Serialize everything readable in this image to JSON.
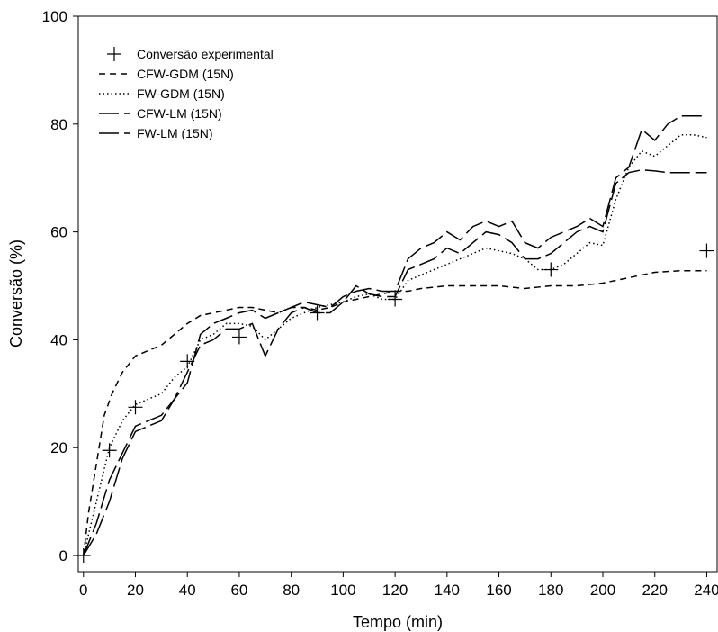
{
  "chart_data": {
    "type": "line",
    "title": "",
    "xlabel": "Tempo (min)",
    "ylabel": "Conversão (%)",
    "xlim": [
      -2,
      244
    ],
    "ylim": [
      -3,
      100
    ],
    "xticks": [
      0,
      20,
      40,
      60,
      80,
      100,
      120,
      140,
      160,
      180,
      200,
      220,
      240
    ],
    "yticks": [
      0,
      20,
      40,
      60,
      80,
      100
    ],
    "grid": false,
    "legend_position": "top-left",
    "series": [
      {
        "name": "Conversão experimental",
        "style": "plus-markers",
        "color": "#000000",
        "x": [
          0,
          10,
          20,
          40,
          60,
          90,
          120,
          180,
          240
        ],
        "y": [
          0,
          19.5,
          27.5,
          36,
          40.5,
          45,
          47.5,
          53,
          56.5
        ]
      },
      {
        "name": "CFW-GDM (15N)",
        "style": "dashed",
        "color": "#000000",
        "x": [
          0,
          2,
          5,
          8,
          11,
          15,
          20,
          25,
          30,
          35,
          40,
          45,
          50,
          55,
          60,
          65,
          70,
          75,
          80,
          85,
          90,
          95,
          100,
          105,
          110,
          115,
          120,
          125,
          130,
          140,
          150,
          160,
          170,
          180,
          190,
          200,
          210,
          220,
          230,
          240
        ],
        "y": [
          0,
          8,
          17,
          26,
          30,
          34,
          37,
          38,
          39,
          41,
          43,
          44.5,
          45,
          45.5,
          46,
          46,
          45.5,
          45,
          46,
          46,
          45.5,
          46,
          47,
          47.5,
          48,
          48.5,
          49,
          49,
          49.5,
          50,
          50,
          50,
          49.5,
          50,
          50,
          50.5,
          51.5,
          52.5,
          52.8,
          52.8
        ]
      },
      {
        "name": "FW-GDM (15N)",
        "style": "dotted",
        "color": "#000000",
        "x": [
          0,
          5,
          10,
          15,
          20,
          25,
          30,
          35,
          40,
          45,
          50,
          55,
          60,
          65,
          70,
          75,
          80,
          85,
          90,
          95,
          100,
          105,
          110,
          115,
          120,
          125,
          130,
          135,
          140,
          145,
          150,
          155,
          160,
          165,
          170,
          175,
          180,
          185,
          190,
          195,
          200,
          205,
          210,
          215,
          220,
          225,
          230,
          235,
          240
        ],
        "y": [
          0,
          10,
          20,
          25,
          28,
          29,
          30,
          33,
          35,
          40,
          41,
          43,
          43,
          42.5,
          40,
          42,
          44,
          45,
          46,
          46.5,
          47,
          48,
          48.5,
          47.5,
          47.5,
          51,
          52,
          53,
          54,
          55,
          56,
          57,
          56.5,
          56,
          55,
          53,
          53,
          54,
          56,
          58,
          57.5,
          66,
          72,
          75,
          74,
          76,
          78,
          78,
          77.5
        ]
      },
      {
        "name": "CFW-LM (15N)",
        "style": "long-dash",
        "color": "#000000",
        "x": [
          0,
          5,
          10,
          15,
          20,
          25,
          30,
          35,
          40,
          45,
          50,
          55,
          60,
          65,
          70,
          75,
          80,
          85,
          90,
          95,
          100,
          105,
          110,
          115,
          120,
          125,
          130,
          135,
          140,
          145,
          150,
          155,
          160,
          165,
          170,
          175,
          180,
          185,
          190,
          195,
          200,
          205,
          210,
          215,
          220,
          225,
          230,
          235,
          240
        ],
        "y": [
          0,
          6,
          14,
          19,
          24,
          25,
          26,
          29,
          32,
          41,
          43,
          44,
          45,
          45.5,
          44,
          45,
          46,
          47,
          46.5,
          46,
          48,
          49,
          49.5,
          49,
          49,
          55,
          57,
          58,
          60,
          58.5,
          61,
          62,
          61,
          62,
          58,
          57,
          59,
          60,
          61,
          62.5,
          61,
          70,
          72,
          79,
          77,
          80,
          81.5,
          81.5,
          81.5
        ]
      },
      {
        "name": "FW-LM (15N)",
        "style": "long-dash",
        "color": "#000000",
        "x": [
          0,
          5,
          10,
          15,
          20,
          25,
          30,
          35,
          40,
          45,
          50,
          55,
          60,
          65,
          70,
          75,
          80,
          85,
          90,
          95,
          100,
          105,
          110,
          115,
          120,
          125,
          130,
          135,
          140,
          145,
          150,
          155,
          160,
          165,
          170,
          175,
          180,
          185,
          190,
          195,
          200,
          205,
          210,
          215,
          220,
          225,
          230,
          235,
          240
        ],
        "y": [
          0,
          4,
          10,
          18,
          23,
          24,
          25,
          29,
          34,
          39,
          40,
          42,
          42,
          43,
          37,
          42,
          45,
          46,
          45,
          45,
          47,
          50,
          48.5,
          48,
          48,
          53,
          54,
          55,
          57,
          56,
          58,
          60,
          59.5,
          58,
          55,
          55,
          56,
          58,
          60,
          61,
          60,
          69,
          71,
          71.5,
          71.3,
          71,
          71,
          71,
          71
        ]
      }
    ]
  }
}
